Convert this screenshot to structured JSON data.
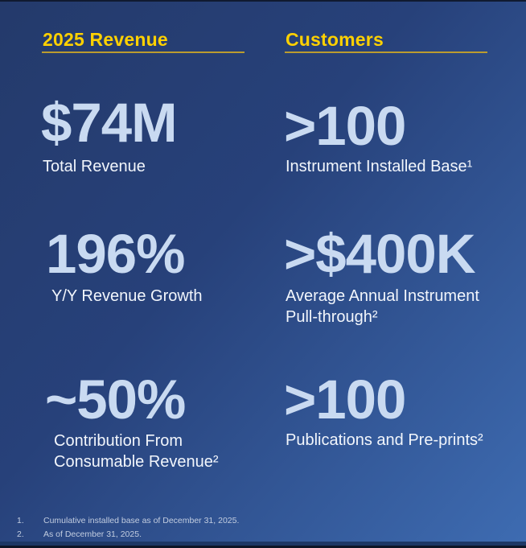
{
  "slide": {
    "columns": [
      {
        "header": "2025 Revenue",
        "stats": [
          {
            "value": "$74M",
            "label": "Total Revenue"
          },
          {
            "value": "196%",
            "label": "Y/Y Revenue Growth"
          },
          {
            "value": "~50%",
            "label": "Contribution From\nConsumable Revenue²"
          }
        ]
      },
      {
        "header": "Customers",
        "stats": [
          {
            "value": ">100",
            "label": "Instrument Installed Base¹"
          },
          {
            "value": ">$400K",
            "label": "Average Annual Instrument\nPull-through²"
          },
          {
            "value": ">100",
            "label": "Publications and Pre-prints²"
          }
        ]
      }
    ],
    "footnotes": [
      {
        "num": "1.",
        "text": "Cumulative installed base as of December 31, 2025."
      },
      {
        "num": "2.",
        "text": "As of December 31, 2025."
      }
    ],
    "colors": {
      "header_yellow": "#ffd100",
      "rule_gold": "#bb9c2f",
      "stat_light_blue": "#c9daf1",
      "label_white": "#f2f6fc",
      "footnote_gray": "#c2cde0",
      "bg_top_left": "#243a6b",
      "bg_bottom_right": "#3e6cb2"
    }
  }
}
